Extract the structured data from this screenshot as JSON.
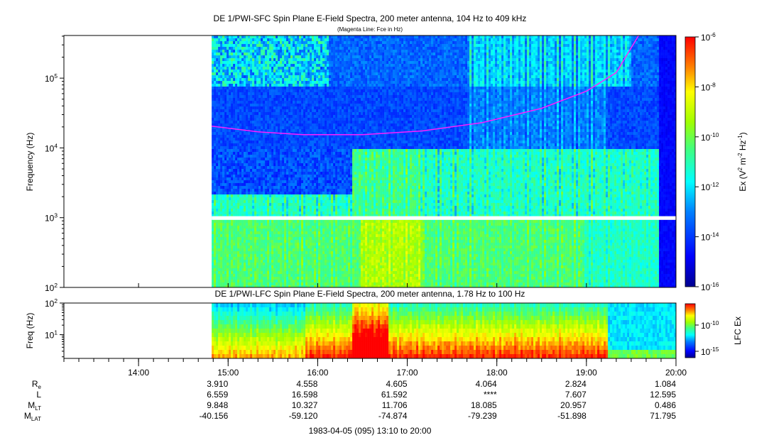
{
  "chart_data": [
    {
      "type": "heatmap",
      "title": "DE 1/PWI-SFC  Spin Plane E-Field Spectra, 200 meter antenna, 104 Hz to 409 kHz",
      "subtitle": "(Magenta Line: Fce in Hz)",
      "ylabel": "Frequency (Hz)",
      "yscale": "log",
      "ylim": [
        100,
        409000
      ],
      "y_ticks": [
        {
          "value": 100,
          "base": "10",
          "exp": "2"
        },
        {
          "value": 1000,
          "base": "10",
          "exp": "3"
        },
        {
          "value": 10000,
          "base": "10",
          "exp": "4"
        },
        {
          "value": 100000,
          "base": "10",
          "exp": "5"
        }
      ],
      "x_range_minutes": [
        0,
        410
      ],
      "data_start_minute": 99,
      "gap_band_hz": [
        930,
        1050
      ],
      "colorbar": {
        "label_parts": [
          "Ex (V",
          "2",
          " m",
          "-2",
          " Hz",
          "-1",
          ")"
        ],
        "scale": "log",
        "range": [
          1e-16,
          1e-06
        ],
        "ticks": [
          {
            "base": "10",
            "exp": "-6"
          },
          {
            "base": "10",
            "exp": "-8"
          },
          {
            "base": "10",
            "exp": "-10"
          },
          {
            "base": "10",
            "exp": "-12"
          },
          {
            "base": "10",
            "exp": "-14"
          },
          {
            "base": "10",
            "exp": "-16"
          }
        ]
      },
      "fce_line": {
        "name": "Fce",
        "color": "#ff20ff",
        "points": [
          {
            "minute": 99,
            "hz": 20500
          },
          {
            "minute": 130,
            "hz": 17000
          },
          {
            "minute": 160,
            "hz": 15500
          },
          {
            "minute": 200,
            "hz": 15500
          },
          {
            "minute": 240,
            "hz": 17500
          },
          {
            "minute": 280,
            "hz": 23000
          },
          {
            "minute": 320,
            "hz": 37000
          },
          {
            "minute": 350,
            "hz": 65000
          },
          {
            "minute": 370,
            "hz": 120000
          },
          {
            "minute": 385,
            "hz": 409000
          }
        ]
      }
    },
    {
      "type": "heatmap",
      "title": "DE 1/PWI-LFC  Spin Plane E-Field Spectra, 200 meter antenna, 1.78 Hz to 100 Hz",
      "ylabel": "Freq (Hz)",
      "yscale": "log",
      "ylim": [
        1.78,
        100
      ],
      "y_ticks": [
        {
          "value": 10,
          "base": "10",
          "exp": "1"
        },
        {
          "value": 100,
          "base": "10",
          "exp": "2"
        }
      ],
      "x_range_minutes": [
        0,
        410
      ],
      "data_start_minute": 99,
      "colorbar": {
        "label": "LFC Ex",
        "ticks": [
          {
            "base": "10",
            "exp": "-10"
          },
          {
            "base": "10",
            "exp": "-15"
          }
        ]
      }
    }
  ],
  "time_axis": {
    "start": "13:10",
    "end": "20:00",
    "ticks": [
      {
        "minute": 50,
        "label": "14:00"
      },
      {
        "minute": 110,
        "label": "15:00"
      },
      {
        "minute": 170,
        "label": "16:00"
      },
      {
        "minute": 230,
        "label": "17:00"
      },
      {
        "minute": 290,
        "label": "18:00"
      },
      {
        "minute": 350,
        "label": "19:00"
      },
      {
        "minute": 410,
        "label": "20:00"
      }
    ]
  },
  "ephemeris": {
    "rows": [
      {
        "label": "R",
        "sub": "e",
        "values": [
          "3.910",
          "4.558",
          "4.605",
          "4.064",
          "2.824",
          "1.084"
        ]
      },
      {
        "label": "L",
        "sub": "",
        "values": [
          "6.559",
          "16.598",
          "61.592",
          "****",
          "7.607",
          "12.595"
        ]
      },
      {
        "label": "M",
        "sub": "LT",
        "values": [
          "9.848",
          "10.327",
          "11.706",
          "18.085",
          "20.957",
          "0.486"
        ]
      },
      {
        "label": "M",
        "sub": "LAT",
        "values": [
          "-40.156",
          "-59.120",
          "-74.874",
          "-79.239",
          "-51.898",
          "71.795"
        ]
      }
    ]
  },
  "footer": "1983-04-05 (095) 13:10 to 20:00"
}
